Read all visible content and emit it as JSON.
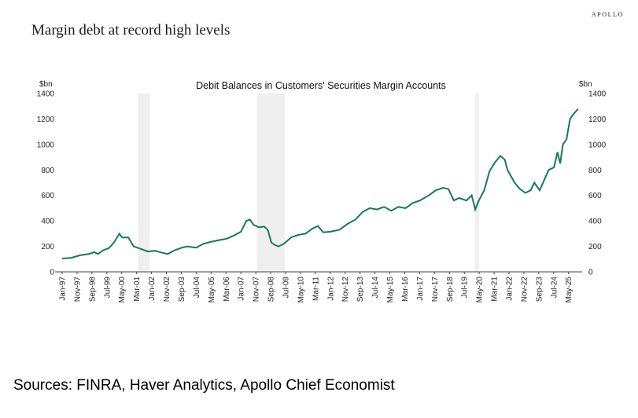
{
  "brand": "APOLLO",
  "headline": "Margin debt at record high levels",
  "sources": "Sources: FINRA, Haver Analytics, Apollo Chief Economist",
  "colors": {
    "line": "#157a5c",
    "recession": "#efefef",
    "axis": "#444444"
  },
  "chart_data": {
    "type": "line",
    "title": "Debit Balances in Customers' Securities Margin Accounts",
    "ylabel_left": "$bn",
    "ylabel_right": "$bn",
    "ylim": [
      0,
      1400
    ],
    "yticks": [
      0,
      200,
      400,
      600,
      800,
      1000,
      1200,
      1400
    ],
    "xlim": [
      1997.0,
      2025.9
    ],
    "xtick_labels": [
      "Jan-97",
      "Nov-97",
      "Sep-98",
      "Jul-99",
      "May-00",
      "Mar-01",
      "Jan-02",
      "Nov-02",
      "Sep-03",
      "Jul-04",
      "May-05",
      "Mar-06",
      "Jan-07",
      "Nov-07",
      "Sep-08",
      "Jul-09",
      "May-10",
      "Mar-11",
      "Jan-12",
      "Nov-12",
      "Sep-13",
      "Jul-14",
      "May-15",
      "Mar-16",
      "Jan-17",
      "Nov-17",
      "Sep-18",
      "Jul-19",
      "May-20",
      "Mar-21",
      "Jan-22",
      "Nov-22",
      "Sep-23",
      "Jul-24",
      "May-25"
    ],
    "recessions": [
      [
        2001.25,
        2001.9
      ],
      [
        2007.9,
        2009.45
      ],
      [
        2020.1,
        2020.3
      ]
    ],
    "series": [
      {
        "name": "Debit balances",
        "x": [
          1997.0,
          1997.5,
          1998.0,
          1998.5,
          1998.8,
          1999.0,
          1999.3,
          1999.6,
          1999.9,
          2000.2,
          2000.35,
          2000.7,
          2001.0,
          2001.4,
          2001.8,
          2002.2,
          2002.6,
          2002.9,
          2003.3,
          2003.7,
          2004.0,
          2004.5,
          2004.9,
          2005.3,
          2005.8,
          2006.2,
          2006.6,
          2007.0,
          2007.3,
          2007.5,
          2007.7,
          2008.0,
          2008.3,
          2008.5,
          2008.7,
          2008.9,
          2009.1,
          2009.4,
          2009.8,
          2010.2,
          2010.6,
          2011.0,
          2011.3,
          2011.6,
          2012.0,
          2012.5,
          2013.0,
          2013.4,
          2013.8,
          2014.2,
          2014.6,
          2015.0,
          2015.4,
          2015.8,
          2016.2,
          2016.6,
          2017.0,
          2017.5,
          2017.9,
          2018.3,
          2018.6,
          2018.9,
          2019.2,
          2019.6,
          2019.9,
          2020.1,
          2020.3,
          2020.6,
          2020.9,
          2021.2,
          2021.5,
          2021.75,
          2021.9,
          2022.3,
          2022.6,
          2022.9,
          2023.2,
          2023.4,
          2023.7,
          2023.95,
          2024.2,
          2024.5,
          2024.7,
          2024.85,
          2025.0,
          2025.2,
          2025.4,
          2025.6,
          2025.85
        ],
        "values": [
          105,
          110,
          130,
          140,
          155,
          140,
          170,
          185,
          230,
          300,
          270,
          270,
          200,
          180,
          160,
          165,
          150,
          140,
          170,
          190,
          200,
          190,
          220,
          235,
          250,
          260,
          285,
          315,
          400,
          410,
          370,
          350,
          355,
          330,
          230,
          210,
          200,
          220,
          270,
          290,
          300,
          340,
          360,
          310,
          315,
          330,
          380,
          410,
          470,
          500,
          490,
          510,
          480,
          510,
          500,
          540,
          560,
          600,
          640,
          660,
          650,
          560,
          580,
          560,
          600,
          490,
          560,
          640,
          790,
          860,
          910,
          880,
          800,
          700,
          650,
          620,
          640,
          700,
          640,
          720,
          800,
          820,
          940,
          850,
          1000,
          1040,
          1200,
          1240,
          1280
        ]
      }
    ]
  }
}
